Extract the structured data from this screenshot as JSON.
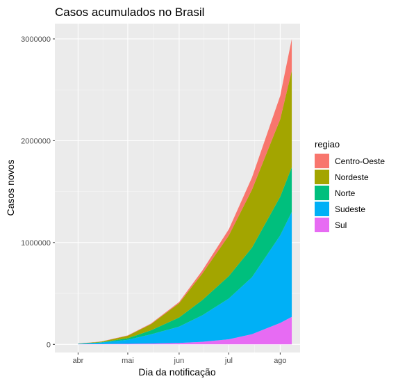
{
  "chart_data": {
    "type": "area",
    "stacked": true,
    "title": "Casos acumulados no Brasil",
    "xlabel": "Dia da notificação",
    "ylabel": "Casos novos",
    "x_ticks": [
      {
        "date": "2020-04-01",
        "label": "abr"
      },
      {
        "date": "2020-05-01",
        "label": "mai"
      },
      {
        "date": "2020-06-01",
        "label": "jun"
      },
      {
        "date": "2020-07-01",
        "label": "jul"
      },
      {
        "date": "2020-08-01",
        "label": "ago"
      }
    ],
    "y_ticks": [
      {
        "value": 0,
        "label": "0"
      },
      {
        "value": 1000000,
        "label": "1000000"
      },
      {
        "value": 2000000,
        "label": "2000000"
      },
      {
        "value": 3000000,
        "label": "3000000"
      }
    ],
    "xlim": [
      "2020-03-18",
      "2020-08-13"
    ],
    "ylim": [
      -80000,
      3150000
    ],
    "grid": true,
    "legend_position": "right",
    "legend_title": "regiao",
    "x": [
      "2020-04-01",
      "2020-04-15",
      "2020-05-01",
      "2020-05-15",
      "2020-06-01",
      "2020-06-15",
      "2020-07-01",
      "2020-07-15",
      "2020-08-01",
      "2020-08-08"
    ],
    "series": [
      {
        "name": "Sul",
        "color": "#E76BF3",
        "values": [
          1000,
          3000,
          5000,
          8000,
          14000,
          25000,
          50000,
          100000,
          210000,
          270000
        ]
      },
      {
        "name": "Sudeste",
        "color": "#00B0F6",
        "values": [
          4000,
          15000,
          40000,
          90000,
          160000,
          260000,
          400000,
          560000,
          860000,
          1030000
        ]
      },
      {
        "name": "Norte",
        "color": "#00BF7D",
        "values": [
          500,
          3000,
          15000,
          40000,
          90000,
          150000,
          220000,
          290000,
          380000,
          440000
        ]
      },
      {
        "name": "Nordeste",
        "color": "#A3A500",
        "values": [
          1500,
          6000,
          25000,
          60000,
          140000,
          260000,
          400000,
          570000,
          760000,
          950000
        ]
      },
      {
        "name": "Centro-Oeste",
        "color": "#F8766D",
        "values": [
          500,
          1500,
          3000,
          6000,
          12000,
          30000,
          60000,
          120000,
          230000,
          310000
        ]
      }
    ],
    "legend_order": [
      "Centro-Oeste",
      "Nordeste",
      "Norte",
      "Sudeste",
      "Sul"
    ]
  }
}
